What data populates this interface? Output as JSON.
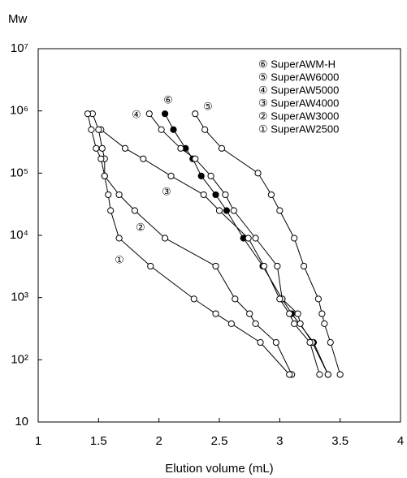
{
  "chart_data": {
    "type": "line",
    "title": "Mw",
    "x_label": "Elution volume (mL)",
    "yscale": "log",
    "xlim": [
      1,
      4
    ],
    "ylim": [
      10,
      10000000
    ],
    "xticks": [
      1,
      1.5,
      2,
      2.5,
      3,
      3.5,
      4
    ],
    "yticks": [
      10,
      {
        "value": 100,
        "label": "10²"
      },
      {
        "value": 1000,
        "label": "10³"
      },
      {
        "value": 10000,
        "label": "10⁴"
      },
      {
        "value": 100000,
        "label": "10⁵"
      },
      {
        "value": 1000000,
        "label": "10⁶"
      },
      {
        "value": 10000000,
        "label": "10⁷"
      }
    ],
    "legend": "upper right",
    "series": [
      {
        "name": "⑥ SuperAWM-H",
        "label": "⑥",
        "color": "#000",
        "marker_fill": "#000",
        "x": [
          2.05,
          2.12,
          2.22,
          2.28,
          2.35,
          2.47,
          2.56,
          2.7,
          2.86,
          3.02,
          3.1,
          3.28,
          3.4
        ],
        "values": [
          900000,
          500000,
          250000,
          170000,
          90000,
          45000,
          25000,
          9000,
          3200,
          950,
          550,
          190,
          58
        ]
      },
      {
        "name": "⑤ SuperAW6000",
        "label": "⑤",
        "color": "#000",
        "marker_fill": "#fff",
        "x": [
          2.3,
          2.38,
          2.52,
          2.82,
          2.93,
          3.0,
          3.12,
          3.2,
          3.32,
          3.35,
          3.37,
          3.42,
          3.5
        ],
        "values": [
          900000,
          500000,
          250000,
          100000,
          45000,
          25000,
          9000,
          3200,
          950,
          550,
          380,
          190,
          58
        ]
      },
      {
        "name": "④ SuperAW5000",
        "label": "④",
        "color": "#000",
        "marker_fill": "#fff",
        "x": [
          1.92,
          2.02,
          2.18,
          2.3,
          2.43,
          2.55,
          2.62,
          2.8,
          2.98,
          3.02,
          3.15,
          3.17,
          3.27,
          3.4
        ],
        "values": [
          900000,
          500000,
          250000,
          170000,
          90000,
          45000,
          25000,
          9000,
          3200,
          950,
          550,
          380,
          190,
          58
        ]
      },
      {
        "name": "③ SuperAW4000",
        "label": "③",
        "color": "#000",
        "marker_fill": "#fff",
        "x": [
          1.52,
          1.72,
          1.87,
          2.1,
          2.37,
          2.5,
          2.74,
          2.87,
          3.0,
          3.08,
          3.12,
          3.25,
          3.33
        ],
        "values": [
          500000,
          250000,
          170000,
          90000,
          45000,
          25000,
          9000,
          3200,
          950,
          550,
          380,
          190,
          58
        ]
      },
      {
        "name": "② SuperAW3000",
        "label": "②",
        "color": "#000",
        "marker_fill": "#fff",
        "x": [
          1.45,
          1.5,
          1.53,
          1.55,
          1.55,
          1.67,
          1.8,
          2.05,
          2.47,
          2.63,
          2.75,
          2.8,
          2.97,
          3.1
        ],
        "values": [
          900000,
          500000,
          250000,
          170000,
          90000,
          45000,
          25000,
          9000,
          3200,
          950,
          550,
          380,
          190,
          58
        ]
      },
      {
        "name": "① SuperAW2500",
        "label": "①",
        "color": "#000",
        "marker_fill": "#fff",
        "x": [
          1.41,
          1.44,
          1.48,
          1.52,
          1.55,
          1.58,
          1.6,
          1.67,
          1.93,
          2.29,
          2.47,
          2.6,
          2.84,
          3.08
        ],
        "values": [
          900000,
          500000,
          250000,
          170000,
          90000,
          45000,
          25000,
          9000,
          3200,
          950,
          550,
          380,
          190,
          58
        ]
      }
    ]
  }
}
